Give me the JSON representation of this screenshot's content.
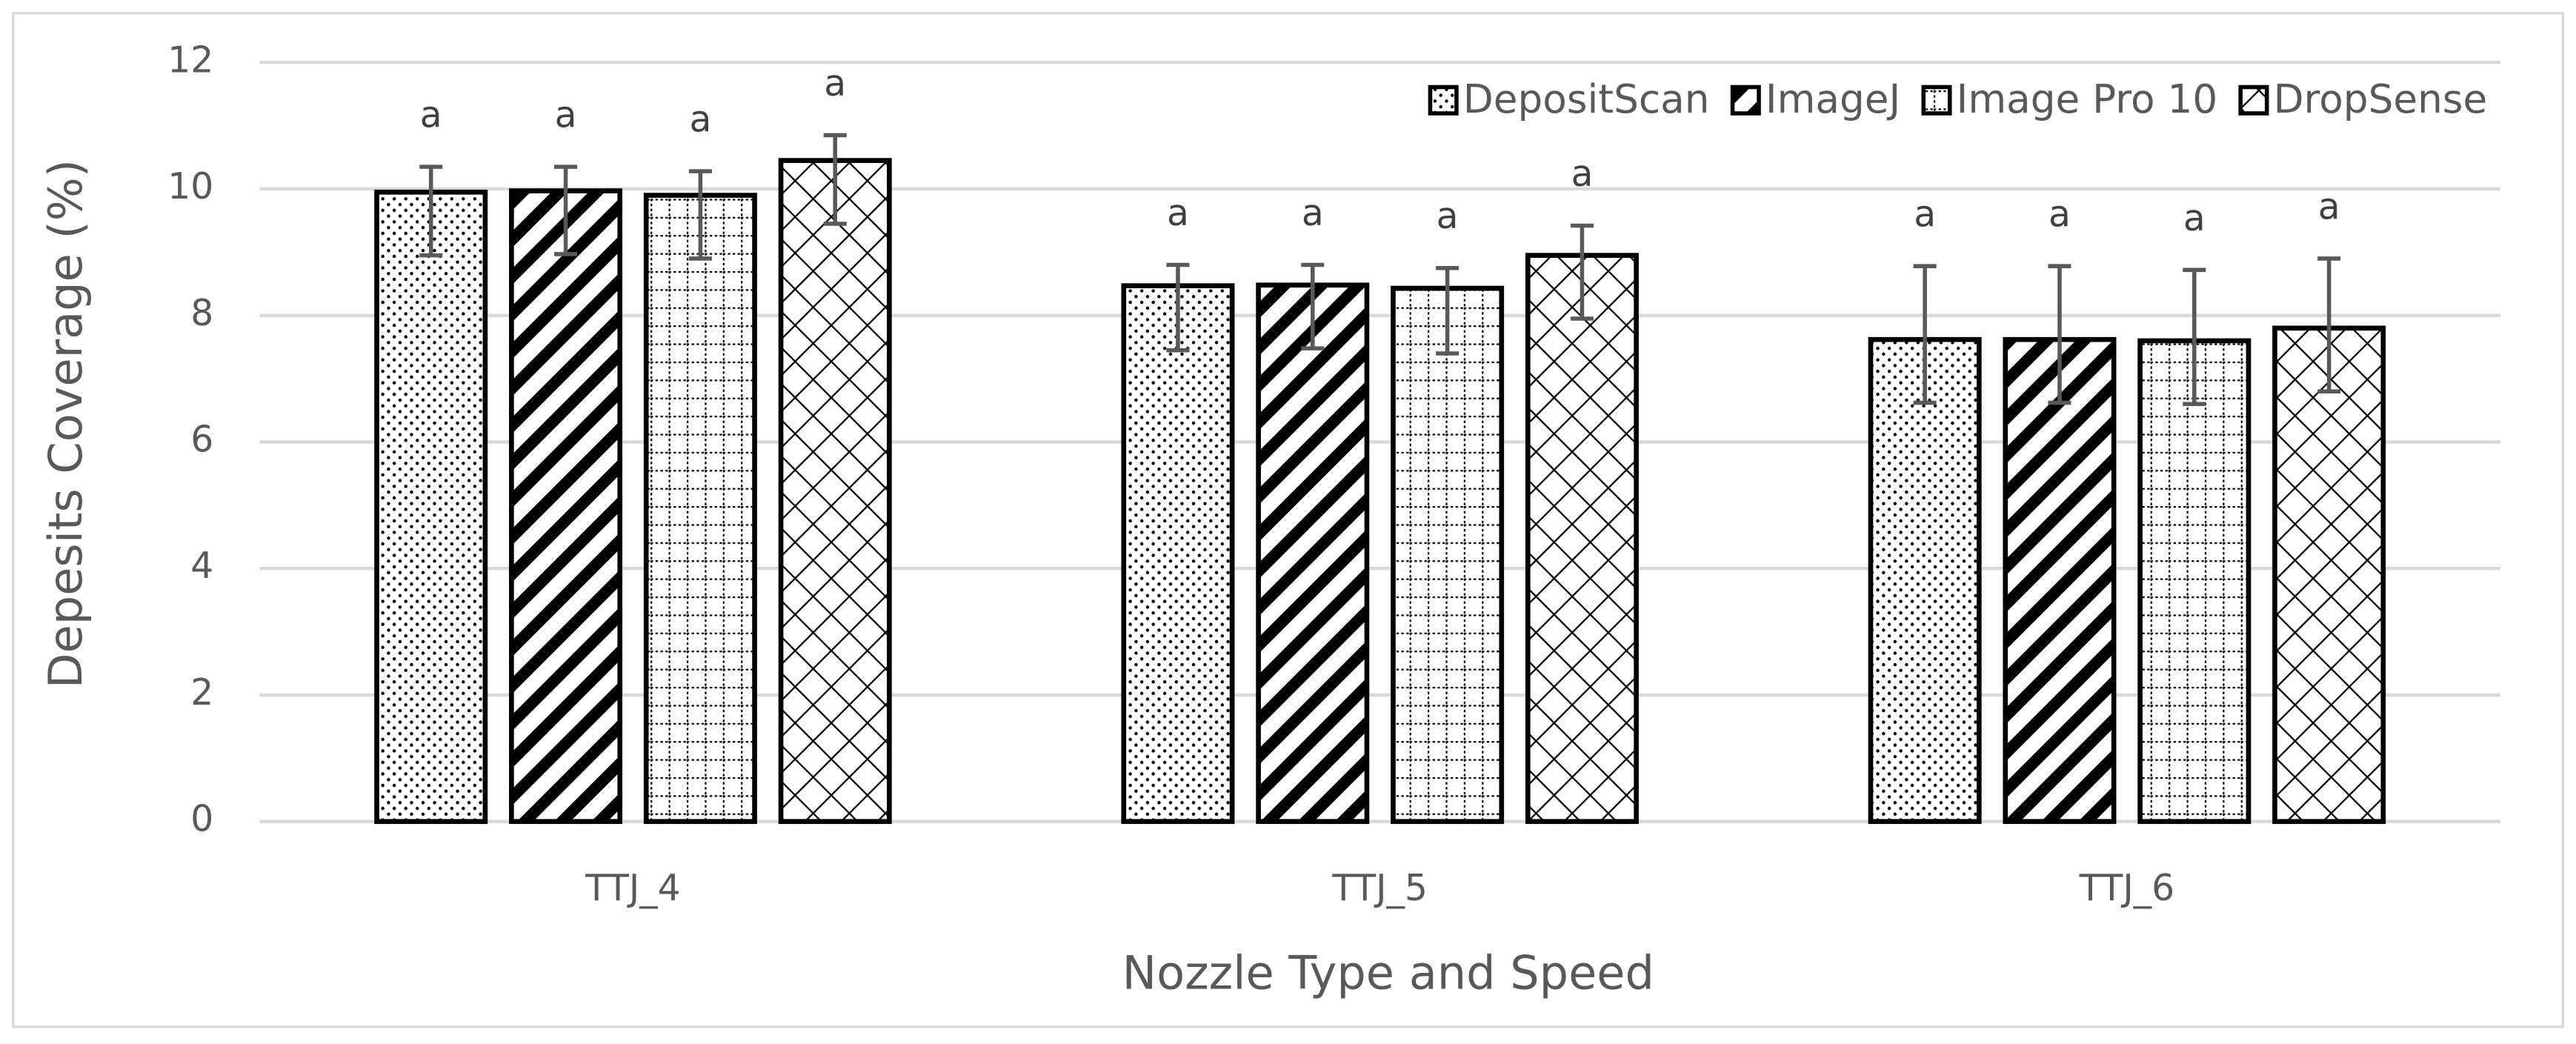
{
  "chart_data": {
    "type": "bar",
    "x_label": "Nozzle Type and Speed",
    "y_label": "Depesits Coverage (%)",
    "categories": [
      "TTJ_4",
      "TTJ_5",
      "TTJ_6"
    ],
    "ylim": [
      0,
      12
    ],
    "yticks": [
      0,
      2,
      4,
      6,
      8,
      10,
      12
    ],
    "grid": true,
    "legend": "top-right",
    "series": [
      {
        "name": "DepositScan",
        "color": "#000000",
        "pattern": "dots",
        "values": [
          9.95,
          8.47,
          7.62
        ],
        "error_minus": [
          1.0,
          1.02,
          1.0
        ],
        "error_plus": [
          0.4,
          0.33,
          1.16
        ],
        "letters": [
          "a",
          "a",
          "a"
        ]
      },
      {
        "name": "ImageJ",
        "color": "#000000",
        "pattern": "diagonal",
        "values": [
          9.97,
          8.48,
          7.62
        ],
        "error_minus": [
          1.0,
          1.0,
          1.0
        ],
        "error_plus": [
          0.38,
          0.32,
          1.16
        ],
        "letters": [
          "a",
          "a",
          "a"
        ]
      },
      {
        "name": "Image Pro 10",
        "color": "#000000",
        "pattern": "grid",
        "values": [
          9.9,
          8.43,
          7.6
        ],
        "error_minus": [
          1.0,
          1.03,
          1.0
        ],
        "error_plus": [
          0.38,
          0.32,
          1.12
        ],
        "letters": [
          "a",
          "a",
          "a"
        ]
      },
      {
        "name": "DropSense",
        "color": "#000000",
        "pattern": "zigzag",
        "values": [
          10.45,
          8.95,
          7.8
        ],
        "error_minus": [
          1.0,
          1.0,
          1.0
        ],
        "error_plus": [
          0.4,
          0.47,
          1.1
        ],
        "letters": [
          "a",
          "a",
          "a"
        ]
      }
    ]
  }
}
